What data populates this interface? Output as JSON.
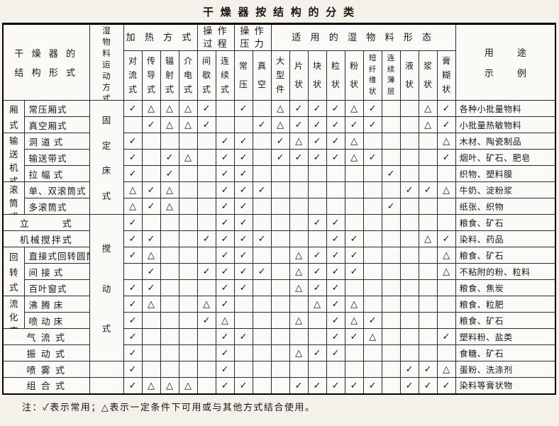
{
  "title": "干 燥 器 按 结 构 的 分 类",
  "note": "注：✓表示常用；△表示一定条件下可用或与其他方式结合使用。",
  "header": {
    "structure_lines": [
      "干 燥 器 的",
      "结 构 形 式"
    ],
    "movement": "湿物料运动方式",
    "use_lines": [
      "用　途",
      "示　例"
    ],
    "groups": [
      {
        "label_lines": [
          "加 热 方 式"
        ],
        "cols": [
          "对流式",
          "传导式",
          "辐射式",
          "介电式"
        ]
      },
      {
        "label_lines": [
          "操 作",
          "过 程"
        ],
        "cols": [
          "间歇式",
          "连续式"
        ]
      },
      {
        "label_lines": [
          "操 作",
          "压 力"
        ],
        "cols": [
          "常压",
          "真空"
        ]
      },
      {
        "label_lines": [
          "适 用 的 湿 物 料 形 态"
        ],
        "cols": [
          "大型件",
          "片状",
          "块状",
          "粒状",
          "粉状",
          "短纤维状",
          "连续薄层",
          "液状",
          "浆状",
          "膏糊状"
        ]
      }
    ]
  },
  "rows": [
    {
      "group": {
        "label": "厢式",
        "span": 2
      },
      "type": "常压厢式",
      "movement": {
        "label": "固定床式",
        "span": 7
      },
      "marks": [
        "✓",
        "△",
        "△",
        "△",
        "✓",
        "",
        "✓",
        "",
        "△",
        "✓",
        "✓",
        "✓",
        "△",
        "✓",
        "",
        "",
        "△",
        "✓"
      ],
      "use": "各种小批量物料"
    },
    {
      "type": "真空厢式",
      "marks": [
        "",
        "✓",
        "△",
        "△",
        "✓",
        "",
        "",
        "✓",
        "△",
        "✓",
        "✓",
        "✓",
        "✓",
        "✓",
        "",
        "",
        "△",
        "✓"
      ],
      "use": "小批量热敏物料"
    },
    {
      "group": {
        "label": "输送机式",
        "span": 3
      },
      "type": "洞 道 式",
      "marks": [
        "✓",
        "",
        "",
        "",
        "",
        "✓",
        "✓",
        "",
        "✓",
        "△",
        "✓",
        "✓",
        "△",
        "",
        "",
        "",
        "",
        "△"
      ],
      "use": "木材、陶瓷制品"
    },
    {
      "type": "输送带式",
      "marks": [
        "✓",
        "",
        "✓",
        "△",
        "",
        "✓",
        "✓",
        "",
        "✓",
        "✓",
        "✓",
        "✓",
        "△",
        "✓",
        "",
        "",
        "",
        "✓"
      ],
      "use": "烟叶、矿石、肥皂"
    },
    {
      "type": "拉 幅 式",
      "marks": [
        "✓",
        "",
        "✓",
        "",
        "",
        "✓",
        "✓",
        "",
        "",
        "",
        "",
        "",
        "",
        "",
        "✓",
        "",
        "",
        ""
      ],
      "use": "织物、塑料膜"
    },
    {
      "group": {
        "label": "滚筒式",
        "span": 2
      },
      "type": "单、双滚筒式",
      "marks": [
        "△",
        "✓",
        "△",
        "",
        "",
        "✓",
        "✓",
        "✓",
        "",
        "",
        "",
        "",
        "",
        "",
        "",
        "✓",
        "✓",
        "△"
      ],
      "use": "牛奶、淀粉浆"
    },
    {
      "type": "多滚筒式",
      "marks": [
        "△",
        "✓",
        "△",
        "",
        "",
        "✓",
        "✓",
        "",
        "",
        "",
        "",
        "",
        "",
        "",
        "✓",
        "",
        "",
        ""
      ],
      "use": "纸张、织物"
    },
    {
      "full": "立　　　式",
      "movement": {
        "label": "搅动式",
        "span": 9
      },
      "marks": [
        "✓",
        "",
        "",
        "",
        "",
        "✓",
        "✓",
        "",
        "",
        "",
        "✓",
        "✓",
        "",
        "",
        "",
        "",
        "",
        ""
      ],
      "use": "粮食、矿石"
    },
    {
      "full": "机械搅拌式",
      "marks": [
        "✓",
        "✓",
        "",
        "",
        "✓",
        "✓",
        "✓",
        "✓",
        "",
        "",
        "",
        "✓",
        "✓",
        "",
        "",
        "",
        "△",
        "✓"
      ],
      "use": "染料、药品"
    },
    {
      "group": {
        "label": "回转式",
        "span": 3
      },
      "type": "直接式回转圆筒",
      "marks": [
        "✓",
        "△",
        "",
        "",
        "",
        "✓",
        "✓",
        "",
        "",
        "△",
        "✓",
        "✓",
        "✓",
        "",
        "",
        "",
        "",
        "△"
      ],
      "use": "粮食、矿石"
    },
    {
      "type": "间 接 式",
      "marks": [
        "",
        "✓",
        "",
        "",
        "✓",
        "✓",
        "✓",
        "✓",
        "",
        "△",
        "✓",
        "✓",
        "✓",
        "",
        "",
        "",
        "",
        "△"
      ],
      "use": "不粘附的粉、粒料"
    },
    {
      "type": "百叶窗式",
      "marks": [
        "✓",
        "✓",
        "",
        "",
        "",
        "✓",
        "✓",
        "",
        "",
        "△",
        "✓",
        "✓",
        "",
        "",
        "",
        "",
        "",
        ""
      ],
      "use": "粮食、焦炭"
    },
    {
      "group": {
        "label": "流化床式",
        "span": 2
      },
      "type": "沸 腾 床",
      "marks": [
        "✓",
        "△",
        "",
        "",
        "△",
        "✓",
        "",
        "",
        "",
        "",
        "△",
        "✓",
        "△",
        "",
        "",
        "",
        "",
        ""
      ],
      "use": "粮食、粒肥"
    },
    {
      "type": "喷 动 床",
      "marks": [
        "✓",
        "",
        "",
        "",
        "✓",
        "△",
        "",
        "",
        "",
        "△",
        "",
        "✓",
        "△",
        "✓",
        "",
        "",
        "",
        ""
      ],
      "use": "粮食、矿石"
    },
    {
      "full": "气 流 式",
      "marks": [
        "✓",
        "",
        "",
        "",
        "",
        "✓",
        "✓",
        "",
        "",
        "",
        "",
        "✓",
        "✓",
        "△",
        "",
        "",
        "",
        "✓"
      ],
      "use": "塑料粉、盐类"
    },
    {
      "full": "振 动 式",
      "marks": [
        "✓",
        "",
        "",
        "",
        "",
        "✓",
        "",
        "",
        "",
        "△",
        "✓",
        "✓",
        "",
        "",
        "",
        "",
        "",
        ""
      ],
      "use": "食糖、矿石"
    },
    {
      "full": "喷 雾 式",
      "movement": {
        "label": "",
        "span": 1
      },
      "marks": [
        "✓",
        "",
        "",
        "",
        "",
        "✓",
        "",
        "",
        "",
        "",
        "",
        "",
        "",
        "",
        "",
        "✓",
        "✓",
        "△"
      ],
      "use": "蛋粉、洗涤剂"
    },
    {
      "full": "组 合 式",
      "movement": {
        "label": "",
        "span": 1
      },
      "marks": [
        "✓",
        "△",
        "△",
        "△",
        "",
        "✓",
        "✓",
        "",
        "",
        "✓",
        "✓",
        "✓",
        "✓",
        "✓",
        "",
        "✓",
        "✓",
        "✓"
      ],
      "use": "染料等膏状物"
    }
  ]
}
